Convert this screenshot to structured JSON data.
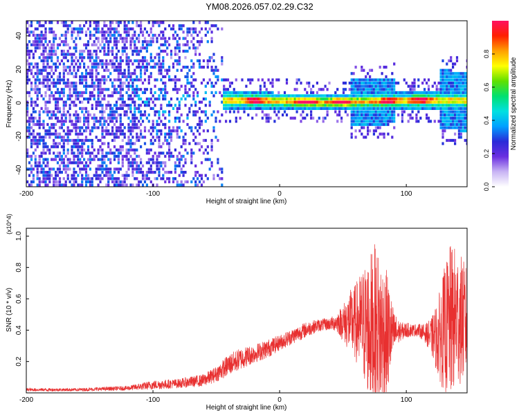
{
  "title": "YM08.2026.057.02.29.C32",
  "chart_data": [
    {
      "type": "heatmap",
      "name": "spectrogram",
      "xlabel": "Height of straight line (km)",
      "ylabel": "Frequency (Hz)",
      "xlim": [
        -200,
        148
      ],
      "ylim": [
        -50,
        49
      ],
      "xticks": [
        -200,
        -100,
        0,
        100
      ],
      "yticks": [
        -40,
        -20,
        0,
        20,
        40
      ],
      "colorbar": {
        "label": "Normalized spectral amplitude",
        "ticks": [
          0.0,
          0.2,
          0.4,
          0.6,
          0.8
        ],
        "tick_labels": [
          "0.0",
          "0.2",
          "0.4",
          "0.6",
          "0.8"
        ],
        "range": [
          0,
          1
        ],
        "colors": [
          "#ffffff",
          "#c8b4f4",
          "#6a2ee0",
          "#2a2ad8",
          "#00a0ff",
          "#00e0e0",
          "#00e070",
          "#60e000",
          "#ffff00",
          "#ffa000",
          "#ff2000",
          "#ff1060"
        ]
      },
      "noise_region_x": [
        -200,
        -45
      ],
      "signal_center_hz": 0,
      "band_x": [
        -45,
        148
      ],
      "peaks_x": [
        -20,
        20,
        48,
        85,
        110
      ]
    },
    {
      "type": "line",
      "name": "snr",
      "xlabel": "Height of straight line (km)",
      "ylabel": "SNR (10 * v/v)",
      "yscale_label": "(x10^4)",
      "xlim": [
        -200,
        148
      ],
      "ylim": [
        0,
        1.05
      ],
      "xticks": [
        -200,
        -100,
        0,
        100
      ],
      "yticks": [
        0.2,
        0.4,
        0.6,
        0.8,
        1.0
      ],
      "color": "#e83030",
      "envelope": {
        "x": [
          -200,
          -160,
          -120,
          -100,
          -80,
          -60,
          -50,
          -40,
          -30,
          -20,
          -10,
          0,
          10,
          20,
          30,
          40,
          45,
          50,
          55,
          60,
          65,
          70,
          75,
          80,
          85,
          90,
          95,
          100,
          105,
          110,
          115,
          120,
          125,
          130,
          135,
          140,
          148
        ],
        "mean": [
          0.02,
          0.02,
          0.03,
          0.05,
          0.06,
          0.08,
          0.12,
          0.18,
          0.22,
          0.25,
          0.28,
          0.32,
          0.36,
          0.4,
          0.43,
          0.44,
          0.45,
          0.45,
          0.45,
          0.45,
          0.44,
          0.42,
          0.4,
          0.38,
          0.37,
          0.38,
          0.39,
          0.4,
          0.4,
          0.4,
          0.38,
          0.36,
          0.35,
          0.4,
          0.45,
          0.48,
          0.45
        ],
        "spread": [
          0.01,
          0.01,
          0.015,
          0.03,
          0.03,
          0.04,
          0.05,
          0.07,
          0.07,
          0.06,
          0.06,
          0.05,
          0.05,
          0.05,
          0.04,
          0.04,
          0.06,
          0.12,
          0.2,
          0.25,
          0.35,
          0.45,
          0.55,
          0.5,
          0.4,
          0.15,
          0.06,
          0.05,
          0.04,
          0.04,
          0.06,
          0.12,
          0.25,
          0.4,
          0.5,
          0.45,
          0.35
        ]
      }
    }
  ]
}
